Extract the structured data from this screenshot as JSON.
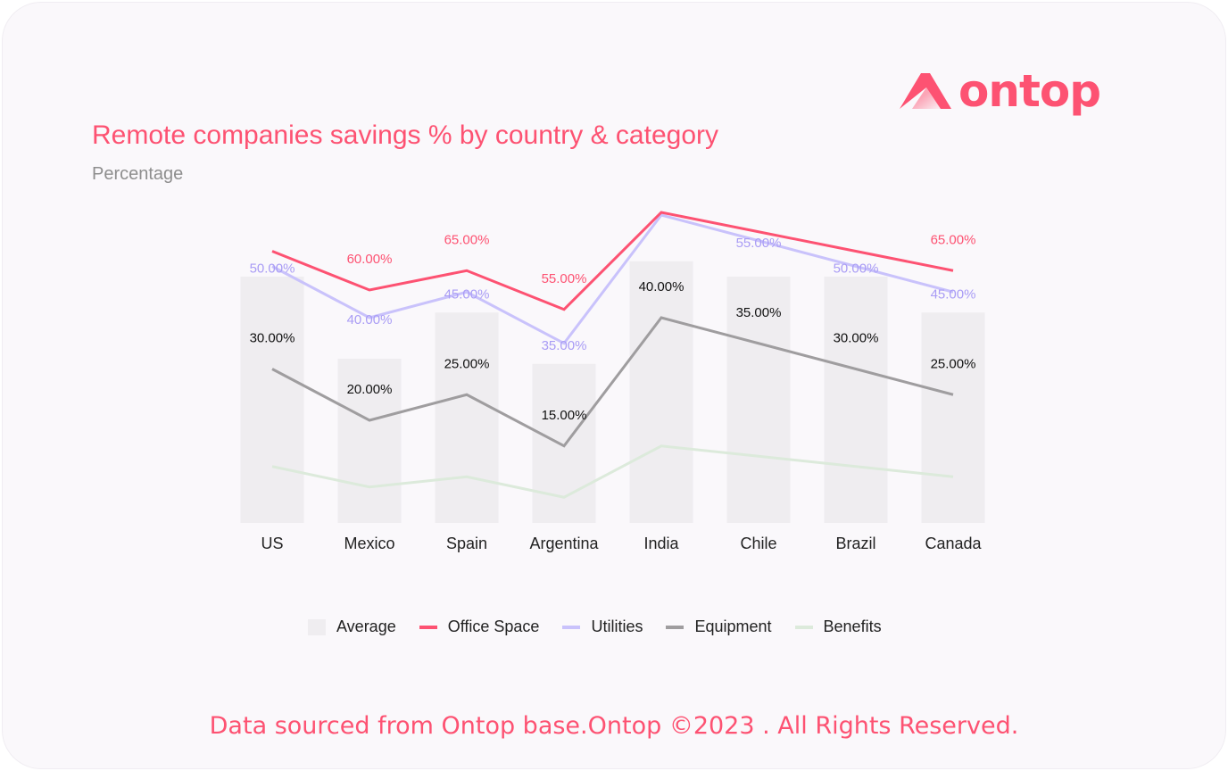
{
  "brand": {
    "name": "ontop",
    "color": "#fd5272"
  },
  "footer": "Data sourced from Ontop base.Ontop ©2023 . All Rights Reserved.",
  "chart_data": {
    "type": "bar",
    "title": "Remote companies savings % by country & category",
    "subtitle": "Percentage",
    "xlabel": "",
    "ylabel": "",
    "grid": false,
    "legend_position": "bottom",
    "categories": [
      "US",
      "Mexico",
      "Spain",
      "Argentina",
      "India",
      "Chile",
      "Brazil",
      "Canada"
    ],
    "series": [
      {
        "name": "Average",
        "type": "bar",
        "color": "#efedf0",
        "values": [
          48,
          32,
          41,
          31,
          51,
          48,
          48,
          41
        ],
        "data_labels": [
          "",
          "",
          "",
          "",
          "",
          "",
          "",
          ""
        ]
      },
      {
        "name": "Office Space",
        "type": "line",
        "color": "#fd5272",
        "values": [
          70,
          60,
          65,
          55,
          80,
          75,
          70,
          65
        ],
        "data_labels": [
          "",
          "60.00%",
          "65.00%",
          "55.00%",
          "",
          "",
          "",
          "65.00%"
        ]
      },
      {
        "name": "Utilities",
        "type": "line",
        "color": "#c9c2fb",
        "values": [
          50,
          40,
          45,
          35,
          60,
          55,
          50,
          45
        ],
        "data_labels": [
          "50.00%",
          "40.00%",
          "45.00%",
          "35.00%",
          "",
          "55.00%",
          "50.00%",
          "45.00%"
        ]
      },
      {
        "name": "Equipment",
        "type": "line",
        "color": "#9f9d9f",
        "values": [
          30,
          20,
          25,
          15,
          40,
          35,
          30,
          25
        ],
        "data_labels": [
          "30.00%",
          "20.00%",
          "25.00%",
          "15.00%",
          "40.00%",
          "35.00%",
          "30.00%",
          "25.00%"
        ]
      },
      {
        "name": "Benefits",
        "type": "line",
        "color": "#dceadb",
        "values": [
          11,
          7,
          9,
          5,
          15,
          13,
          11,
          9
        ],
        "data_labels": [
          "",
          "",
          "",
          "",
          "",
          "",
          "",
          ""
        ]
      }
    ]
  }
}
